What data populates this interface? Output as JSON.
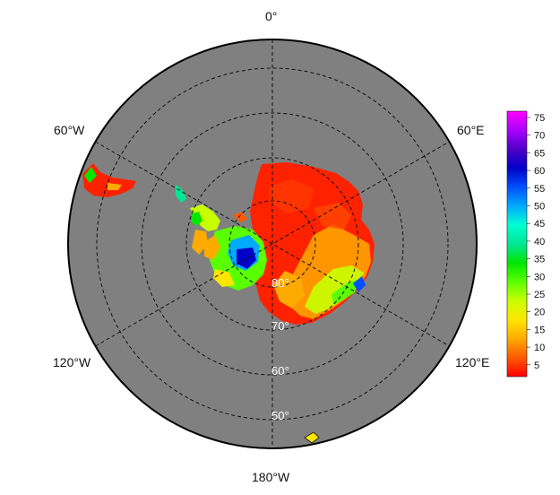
{
  "map": {
    "projection": "south polar stereographic",
    "ocean_color": "#808080",
    "longitude_labels": {
      "top": "0°",
      "upper_left": "60°W",
      "upper_right": "60°E",
      "lower_left": "120°W",
      "lower_right": "120°E",
      "bottom": "180°W"
    },
    "latitude_labels": [
      "80°",
      "70°",
      "60°",
      "50°"
    ]
  },
  "colorbar": {
    "ticks": [
      "75",
      "70",
      "65",
      "60",
      "55",
      "50",
      "45",
      "40",
      "35",
      "30",
      "25",
      "20",
      "15",
      "10",
      "5"
    ],
    "colors": [
      "#ff0000",
      "#ff5a00",
      "#ffaa00",
      "#ffe600",
      "#c8ff00",
      "#5aff00",
      "#00e600",
      "#00e696",
      "#00ffd2",
      "#00aaff",
      "#0050ff",
      "#0000c8",
      "#5000c8",
      "#aa00ff",
      "#ff00ff"
    ]
  }
}
